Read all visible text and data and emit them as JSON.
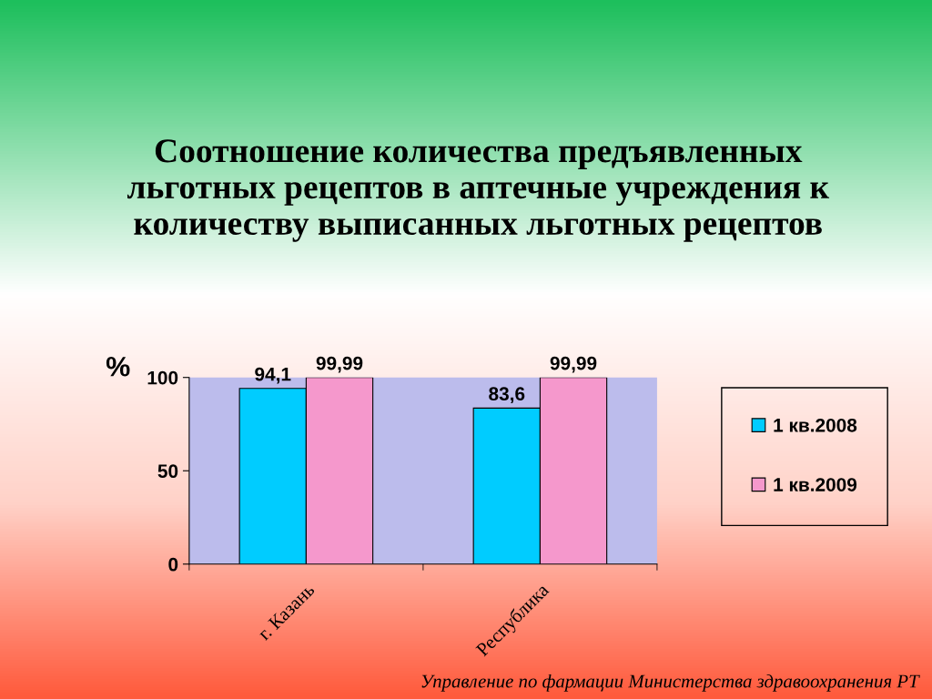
{
  "chart_data": {
    "type": "bar",
    "title": "Соотношение количества предъявленных\nльготных рецептов в аптечные учреждения к\nколичеству выписанных льготных рецептов",
    "ylabel": "%",
    "categories": [
      "г. Казань",
      "Республика"
    ],
    "series": [
      {
        "name": "1 кв.2008",
        "color": "#00ccff",
        "values": [
          94.1,
          83.6
        ],
        "value_labels": [
          "94,1",
          "83,6"
        ]
      },
      {
        "name": "1 кв.2009",
        "color": "#f598cc",
        "values": [
          99.99,
          99.99
        ],
        "value_labels": [
          "99,99",
          "99,99"
        ]
      }
    ],
    "ylim": [
      0,
      100
    ],
    "yticks": [
      0,
      50,
      100
    ],
    "grid": false,
    "legend": "right",
    "annotations": [
      "Управление по фармации Министерства здравоохранения РТ"
    ]
  }
}
